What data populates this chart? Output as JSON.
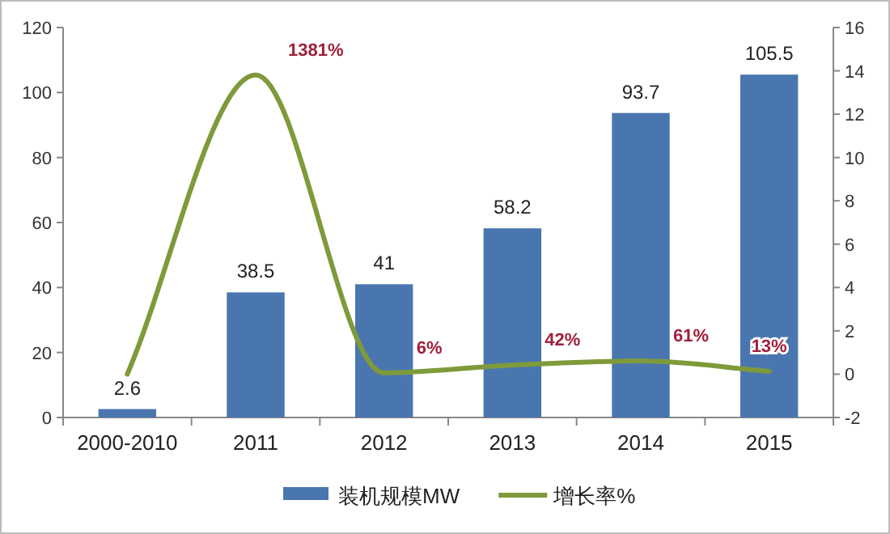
{
  "chart_data": {
    "type": "bar",
    "categories": [
      "2000-2010",
      "2011",
      "2012",
      "2013",
      "2014",
      "2015"
    ],
    "ylim": [
      0,
      120
    ],
    "yticks": [
      0,
      20,
      40,
      60,
      80,
      100,
      120
    ],
    "y2lim": [
      -2,
      16
    ],
    "y2ticks": [
      -2,
      0,
      2,
      4,
      6,
      8,
      10,
      12,
      14,
      16
    ],
    "legend": "bottom",
    "grid": false,
    "series": [
      {
        "name": "装机规模MW",
        "color": "#4a76b0",
        "values": [
          2.6,
          38.5,
          41,
          58.2,
          93.7,
          105.5
        ],
        "value_labels": [
          "2.6",
          "38.5",
          "41",
          "58.2",
          "93.7",
          "105.5"
        ]
      },
      {
        "name": "增长率%",
        "type": "line",
        "axis": "y2",
        "color": "#7f9a3a",
        "values": [
          0,
          13.81,
          0.06,
          0.42,
          0.61,
          0.13
        ],
        "value_labels": [
          null,
          "1381%",
          "6%",
          "42%",
          "61%",
          "13%"
        ]
      }
    ]
  }
}
